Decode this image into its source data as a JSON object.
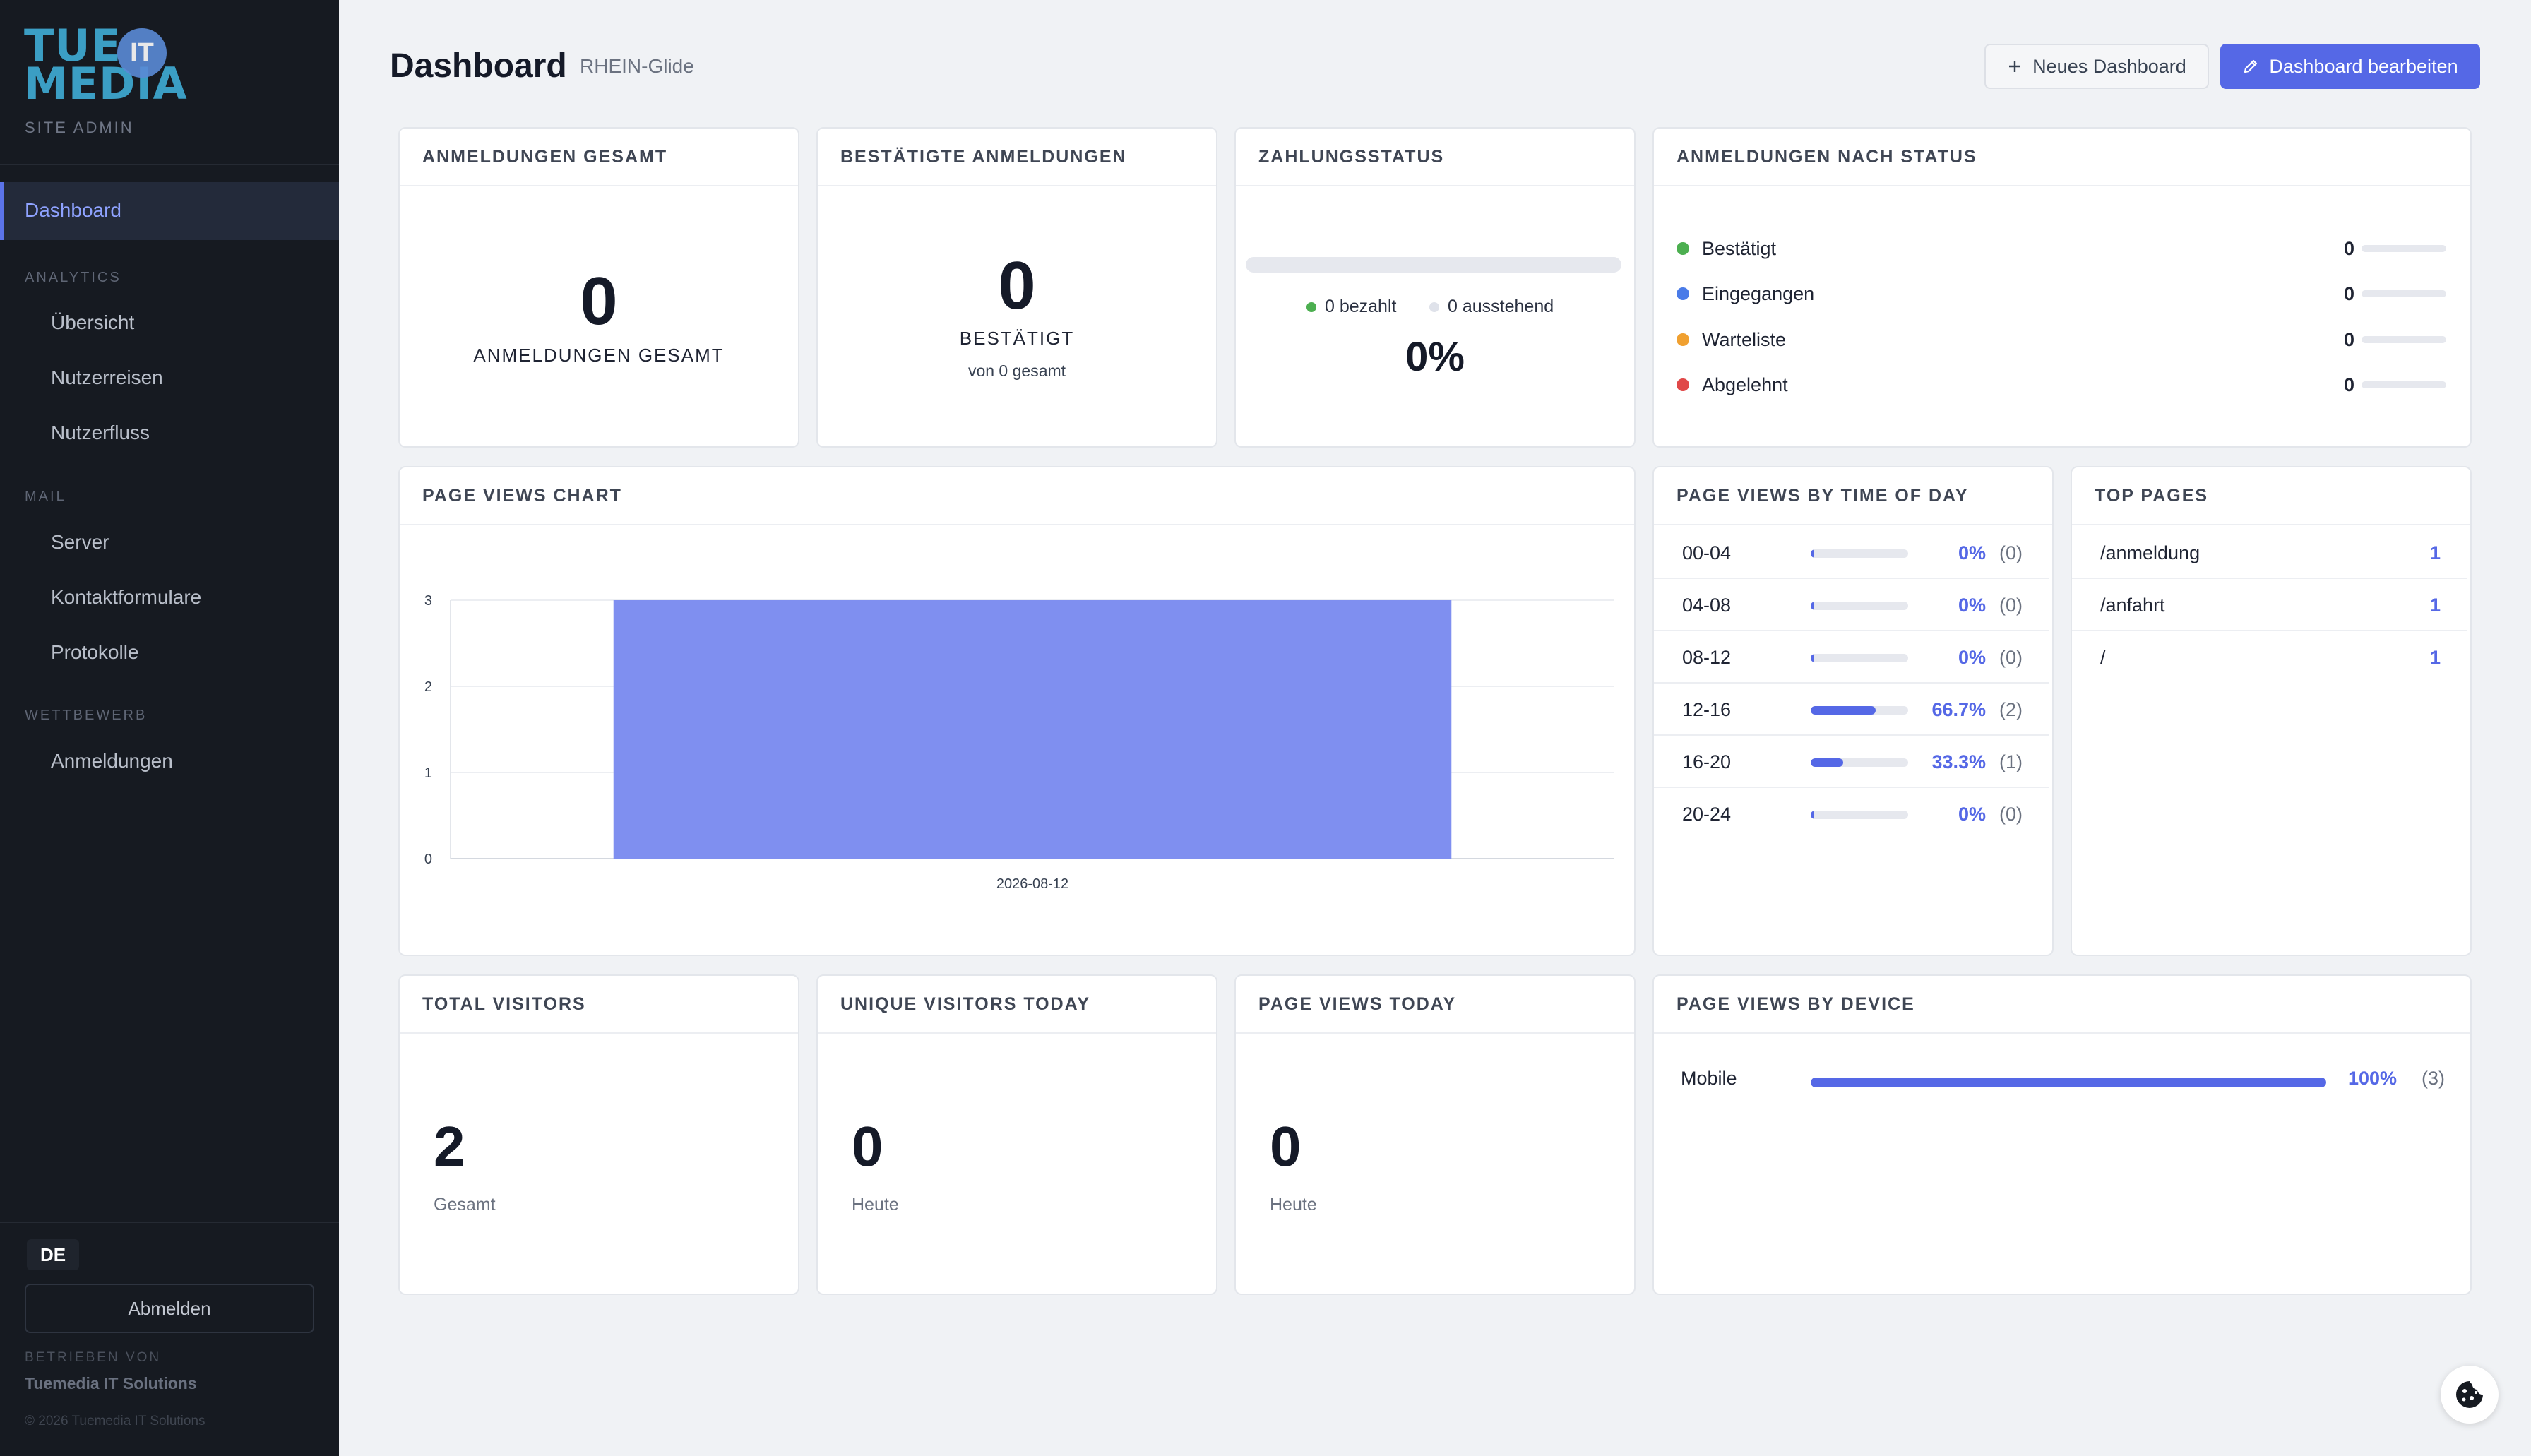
{
  "sidebar": {
    "logo_line1": "TUE",
    "logo_badge": "IT",
    "logo_line2": "MEDIA",
    "site_admin": "SITE ADMIN",
    "active_item": "Dashboard",
    "sections": {
      "analytics": "ANALYTICS",
      "mail": "MAIL",
      "wettbewerb": "WETTBEWERB"
    },
    "items": {
      "uebersicht": "Übersicht",
      "nutzerreisen": "Nutzerreisen",
      "nutzerfluss": "Nutzerfluss",
      "server": "Server",
      "kontaktformulare": "Kontaktformulare",
      "protokolle": "Protokolle",
      "anmeldungen": "Anmeldungen"
    },
    "language": "DE",
    "logout": "Abmelden",
    "powered_by": "BETRIEBEN VON",
    "powered_name": "Tuemedia IT Solutions",
    "copyright": "© 2026 Tuemedia IT Solutions"
  },
  "header": {
    "title": "Dashboard",
    "subtitle": "RHEIN-Glide",
    "new_button": "Neues Dashboard",
    "edit_button": "Dashboard bearbeiten"
  },
  "cards": {
    "total": {
      "title": "ANMELDUNGEN GESAMT",
      "value": "0",
      "label": "ANMELDUNGEN GESAMT"
    },
    "confirmed": {
      "title": "BESTÄTIGTE ANMELDUNGEN",
      "value": "0",
      "label": "BESTÄTIGT",
      "sub": "von 0 gesamt"
    },
    "payment": {
      "title": "ZAHLUNGSSTATUS",
      "paid": "0 bezahlt",
      "pending": "0 ausstehend",
      "percent": "0%",
      "paid_fraction": 0
    },
    "by_status": {
      "title": "ANMELDUNGEN NACH STATUS",
      "rows": [
        {
          "label": "Bestätigt",
          "value": "0",
          "color": "#4caf50"
        },
        {
          "label": "Eingegangen",
          "value": "0",
          "color": "#4a7be8"
        },
        {
          "label": "Warteliste",
          "value": "0",
          "color": "#f0a030"
        },
        {
          "label": "Abgelehnt",
          "value": "0",
          "color": "#e04848"
        }
      ]
    },
    "chart": {
      "title": "PAGE VIEWS CHART"
    },
    "time_of_day": {
      "title": "PAGE VIEWS BY TIME OF DAY",
      "rows": [
        {
          "label": "00-04",
          "pct": "0%",
          "count": "(0)",
          "fraction": 0
        },
        {
          "label": "04-08",
          "pct": "0%",
          "count": "(0)",
          "fraction": 0
        },
        {
          "label": "08-12",
          "pct": "0%",
          "count": "(0)",
          "fraction": 0
        },
        {
          "label": "12-16",
          "pct": "66.7%",
          "count": "(2)",
          "fraction": 0.667
        },
        {
          "label": "16-20",
          "pct": "33.3%",
          "count": "(1)",
          "fraction": 0.333
        },
        {
          "label": "20-24",
          "pct": "0%",
          "count": "(0)",
          "fraction": 0
        }
      ]
    },
    "top_pages": {
      "title": "TOP PAGES",
      "rows": [
        {
          "path": "/anmeldung",
          "count": "1"
        },
        {
          "path": "/anfahrt",
          "count": "1"
        },
        {
          "path": "/",
          "count": "1"
        }
      ]
    },
    "total_visitors": {
      "title": "TOTAL VISITORS",
      "value": "2",
      "label": "Gesamt"
    },
    "unique_today": {
      "title": "UNIQUE VISITORS TODAY",
      "value": "0",
      "label": "Heute"
    },
    "views_today": {
      "title": "PAGE VIEWS TODAY",
      "value": "0",
      "label": "Heute"
    },
    "device": {
      "title": "PAGE VIEWS BY DEVICE",
      "rows": [
        {
          "label": "Mobile",
          "pct": "100%",
          "count": "(3)",
          "fraction": 1
        }
      ]
    }
  },
  "colors": {
    "accent": "#5568e6",
    "sidebar_bg": "#161a21",
    "bar_fill": "#7f8ff0"
  },
  "chart_data": {
    "type": "bar",
    "categories": [
      "2026-08-12"
    ],
    "values": [
      3
    ],
    "ylim": [
      0,
      3
    ],
    "yticks": [
      "0",
      "1",
      "2",
      "3"
    ],
    "grid": true,
    "title": "",
    "xlabel": "",
    "ylabel": ""
  }
}
